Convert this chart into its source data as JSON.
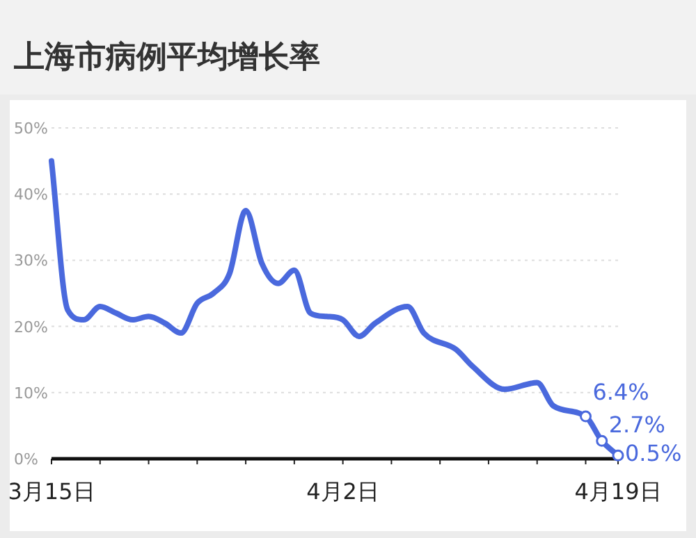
{
  "chart_data": {
    "type": "line",
    "title": "上海市病例平均增长率",
    "x": [
      "--03-15",
      "--03-16",
      "--03-17",
      "--03-18",
      "--03-19",
      "--03-20",
      "--03-21",
      "--03-22",
      "--03-23",
      "--03-24",
      "--03-25",
      "--03-26",
      "--03-27",
      "--03-28",
      "--03-29",
      "--03-30",
      "--03-31",
      "--04-01",
      "--04-02",
      "--04-03",
      "--04-04",
      "--04-06",
      "--04-07",
      "--04-09",
      "--04-10",
      "--04-12",
      "--04-14",
      "--04-15",
      "--04-17",
      "--04-18",
      "--04-19"
    ],
    "series": [
      {
        "color": "#4a69dd",
        "values": [
          45,
          22.5,
          21,
          23,
          22,
          21,
          21.5,
          20.5,
          19,
          23.5,
          25,
          28,
          37.5,
          29.5,
          26.5,
          28.5,
          22,
          21.5,
          21,
          18.5,
          20.5,
          23,
          19,
          16.5,
          14,
          10.5,
          11.5,
          8,
          6.4,
          2.7,
          0.5
        ],
        "value_labels": [
          null,
          null,
          null,
          null,
          null,
          null,
          null,
          null,
          null,
          null,
          null,
          null,
          null,
          null,
          null,
          null,
          null,
          null,
          null,
          null,
          null,
          null,
          null,
          null,
          null,
          null,
          null,
          null,
          "6.4%",
          "2.7%",
          "0.5%"
        ]
      }
    ],
    "xlim": [
      "--03-15",
      "--04-19"
    ],
    "xticks": [
      {
        "value": "--03-15",
        "label": "3月15日"
      },
      {
        "value": "--03-18",
        "label": null
      },
      {
        "value": "--03-21",
        "label": null
      },
      {
        "value": "--03-24",
        "label": null
      },
      {
        "value": "--03-27",
        "label": null
      },
      {
        "value": "--03-30",
        "label": null
      },
      {
        "value": "--04-02",
        "label": "4月2日"
      },
      {
        "value": "--04-05",
        "label": null
      },
      {
        "value": "--04-08",
        "label": null
      },
      {
        "value": "--04-11",
        "label": null
      },
      {
        "value": "--04-14",
        "label": null
      },
      {
        "value": "--04-17",
        "label": null
      },
      {
        "value": "--04-19",
        "label": "4月19日"
      }
    ],
    "ylim": [
      0,
      50
    ],
    "yticks": [
      {
        "value": 0,
        "label": "0%"
      },
      {
        "value": 10,
        "label": "10%"
      },
      {
        "value": 20,
        "label": "20%"
      },
      {
        "value": 30,
        "label": "30%"
      },
      {
        "value": 40,
        "label": "40%"
      },
      {
        "value": 50,
        "label": "50%"
      }
    ],
    "grid": "y"
  }
}
